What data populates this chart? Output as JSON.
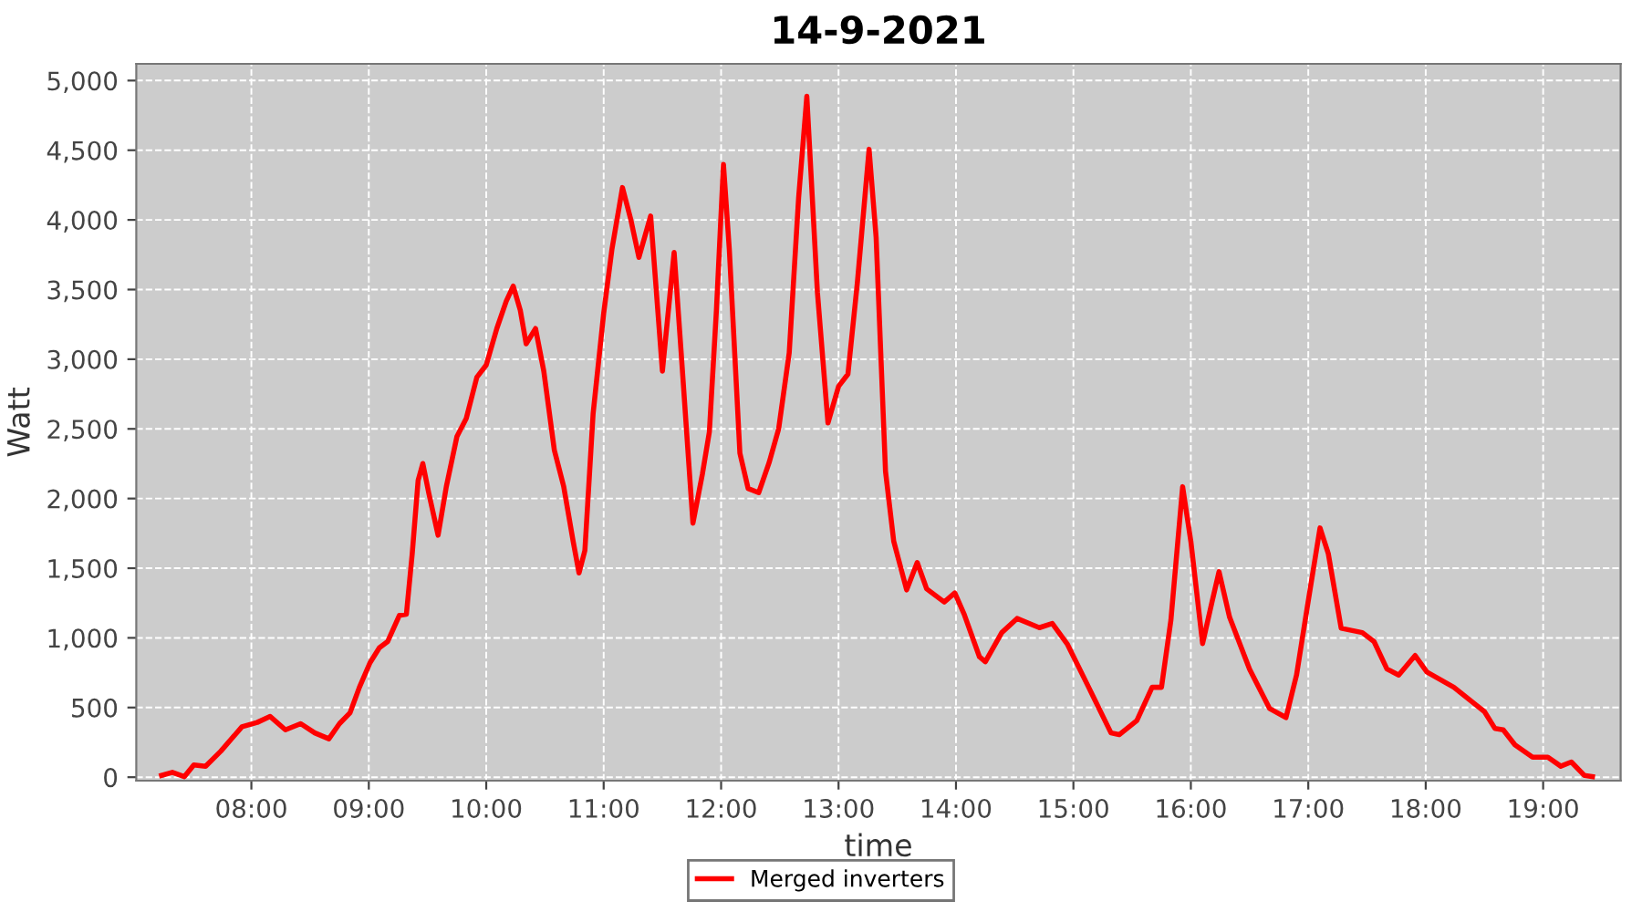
{
  "chart_data": {
    "type": "line",
    "title": "14-9-2021",
    "xlabel": "time",
    "ylabel": "Watt",
    "x": [
      7.235,
      7.327,
      7.43,
      7.51,
      7.61,
      7.74,
      7.92,
      8.05,
      8.16,
      8.29,
      8.42,
      8.54,
      8.66,
      8.75,
      8.84,
      8.92,
      9.01,
      9.09,
      9.16,
      9.26,
      9.32,
      9.37,
      9.42,
      9.46,
      9.51,
      9.59,
      9.66,
      9.75,
      9.83,
      9.92,
      10.0,
      10.09,
      10.17,
      10.23,
      10.29,
      10.34,
      10.42,
      10.49,
      10.58,
      10.66,
      10.74,
      10.79,
      10.84,
      10.91,
      11.0,
      11.07,
      11.16,
      11.23,
      11.3,
      11.4,
      11.5,
      11.6,
      11.66,
      11.76,
      11.84,
      11.9,
      11.96,
      12.02,
      12.07,
      12.16,
      12.23,
      12.32,
      12.41,
      12.49,
      12.58,
      12.66,
      12.73,
      12.82,
      12.91,
      13.0,
      13.08,
      13.16,
      13.26,
      13.32,
      13.4,
      13.47,
      13.58,
      13.67,
      13.75,
      13.9,
      13.99,
      14.07,
      14.2,
      14.25,
      14.39,
      14.52,
      14.71,
      14.82,
      14.95,
      15.13,
      15.32,
      15.39,
      15.54,
      15.67,
      15.75,
      15.83,
      15.93,
      16.0,
      16.1,
      16.18,
      16.24,
      16.33,
      16.5,
      16.67,
      16.81,
      16.9,
      16.99,
      17.1,
      17.17,
      17.28,
      17.46,
      17.56,
      17.67,
      17.77,
      17.91,
      18.01,
      18.24,
      18.42,
      18.5,
      18.59,
      18.66,
      18.76,
      18.91,
      19.04,
      19.15,
      19.24,
      19.35,
      19.42
    ],
    "series": [
      {
        "name": "Merged inverters",
        "color": "#ff0000",
        "values": [
          13,
          35,
          4,
          88,
          78,
          187,
          362,
          393,
          436,
          340,
          384,
          318,
          275,
          384,
          462,
          645,
          821,
          929,
          973,
          1161,
          1169,
          1606,
          2130,
          2251,
          2042,
          1737,
          2085,
          2444,
          2575,
          2871,
          2958,
          3220,
          3416,
          3525,
          3351,
          3111,
          3220,
          2915,
          2347,
          2085,
          1693,
          1466,
          1627,
          2609,
          3329,
          3787,
          4232,
          4006,
          3731,
          4028,
          2915,
          3766,
          3046,
          1823,
          2173,
          2478,
          3351,
          4398,
          3787,
          2326,
          2072,
          2042,
          2261,
          2500,
          3046,
          4159,
          4887,
          3482,
          2543,
          2805,
          2893,
          3547,
          4507,
          3875,
          2195,
          1693,
          1344,
          1541,
          1352,
          1257,
          1322,
          1169,
          864,
          829,
          1038,
          1139,
          1073,
          1104,
          952,
          645,
          318,
          305,
          406,
          645,
          645,
          1126,
          2085,
          1693,
          959,
          1257,
          1475,
          1148,
          776,
          493,
          428,
          733,
          1213,
          1789,
          1606,
          1069,
          1038,
          973,
          776,
          733,
          873,
          755,
          645,
          524,
          471,
          349,
          340,
          232,
          144,
          144,
          79,
          109,
          13,
          4
        ]
      }
    ],
    "xlim": [
      7.02,
      19.66
    ],
    "xticks": [
      {
        "value": 8,
        "label": "08:00"
      },
      {
        "value": 9,
        "label": "09:00"
      },
      {
        "value": 10,
        "label": "10:00"
      },
      {
        "value": 11,
        "label": "11:00"
      },
      {
        "value": 12,
        "label": "12:00"
      },
      {
        "value": 13,
        "label": "13:00"
      },
      {
        "value": 14,
        "label": "14:00"
      },
      {
        "value": 15,
        "label": "15:00"
      },
      {
        "value": 16,
        "label": "16:00"
      },
      {
        "value": 17,
        "label": "17:00"
      },
      {
        "value": 18,
        "label": "18:00"
      },
      {
        "value": 19,
        "label": "19:00"
      }
    ],
    "ylim": [
      -25,
      5120
    ],
    "yticks": [
      0,
      500,
      {
        "value": 1000,
        "label": "1,000"
      },
      {
        "value": 1500,
        "label": "1,500"
      },
      {
        "value": 2000,
        "label": "2,000"
      },
      {
        "value": 2500,
        "label": "2,500"
      },
      {
        "value": 3000,
        "label": "3,000"
      },
      {
        "value": 3500,
        "label": "3,500"
      },
      {
        "value": 4000,
        "label": "4,000"
      },
      {
        "value": 4500,
        "label": "4,500"
      },
      {
        "value": 5000,
        "label": "5,000"
      }
    ],
    "grid": true,
    "legend": "bottom",
    "marker": "none",
    "line_style": "solid"
  }
}
